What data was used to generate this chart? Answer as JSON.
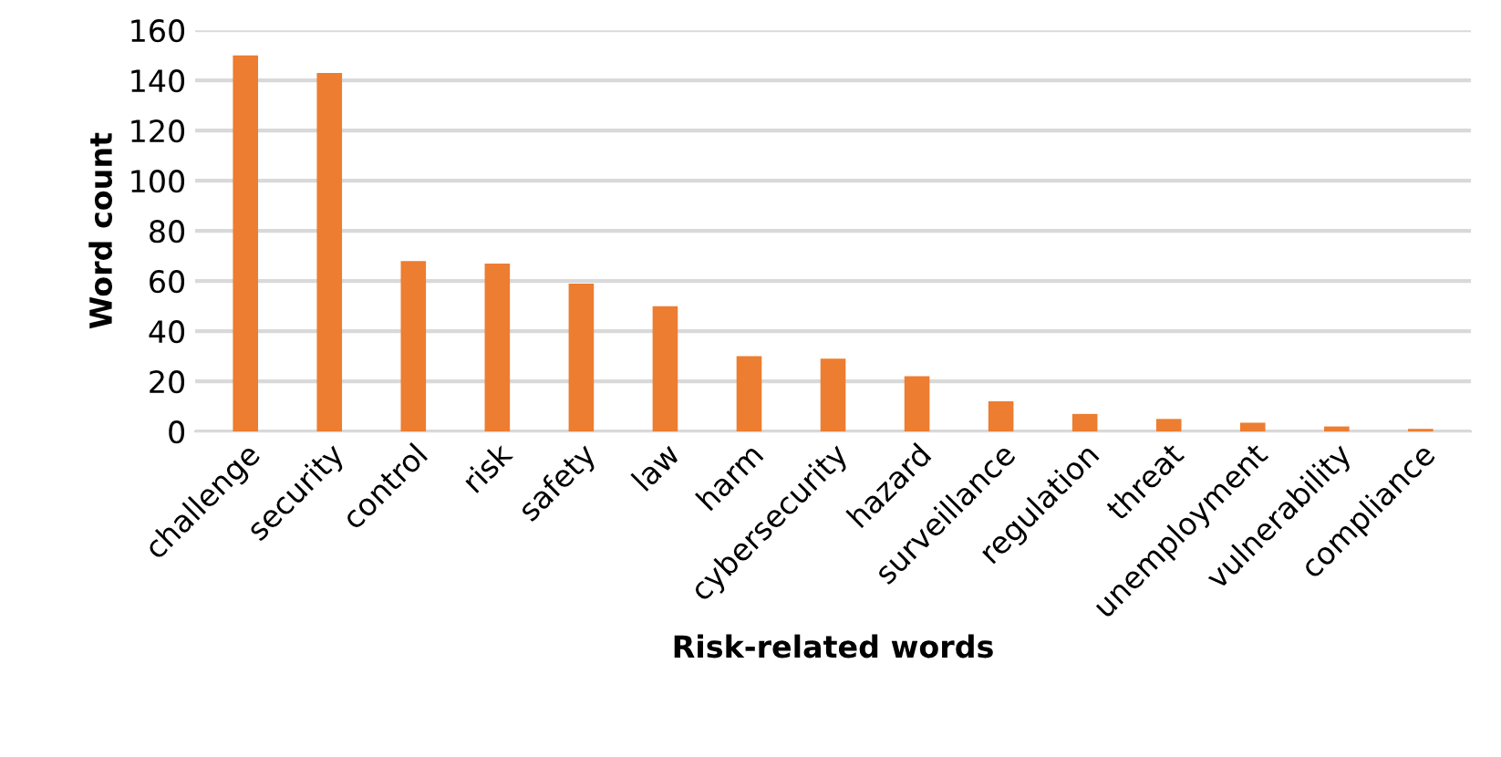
{
  "chart_data": {
    "type": "bar",
    "xlabel": "Risk-related words",
    "ylabel": "Word count",
    "categories": [
      "challenge",
      "security",
      "control",
      "risk",
      "safety",
      "law",
      "harm",
      "cybersecurity",
      "hazard",
      "surveillance",
      "regulation",
      "threat",
      "unemployment",
      "vulnerability",
      "compliance"
    ],
    "values": [
      150,
      143,
      68,
      67,
      59,
      50,
      30,
      29,
      22,
      12,
      7,
      5,
      3.5,
      2,
      1
    ],
    "color": "#ed7d31",
    "ylim": [
      0,
      160
    ],
    "yticks": [
      0,
      20,
      40,
      60,
      80,
      100,
      120,
      140,
      160
    ],
    "grid": "y",
    "legend": false
  }
}
